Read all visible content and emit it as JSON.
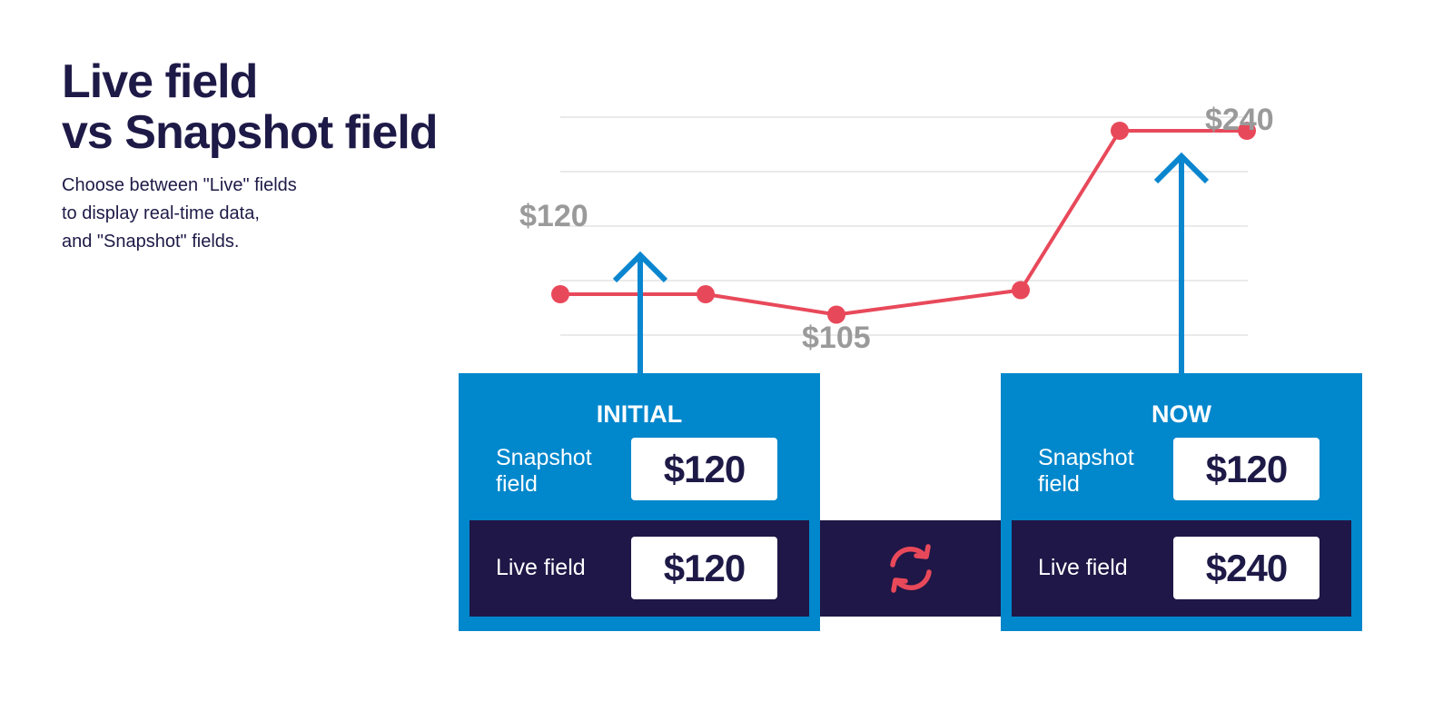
{
  "header": {
    "title_line1": "Live field",
    "title_line2": "vs Snapshot field",
    "subtitle_line1": "Choose between \"Live\" fields",
    "subtitle_line2": "to display real-time data,",
    "subtitle_line3": "and \"Snapshot\" fields."
  },
  "chart": {
    "points": [
      120,
      120,
      105,
      123,
      240,
      240
    ],
    "ymin": 90,
    "ymax": 250,
    "label_start": "$120",
    "label_low": "$105",
    "label_end": "$240"
  },
  "initial": {
    "title": "INITIAL",
    "snapshot_label": "Snapshot field",
    "snapshot_value": "$120",
    "live_label": "Live field",
    "live_value": "$120"
  },
  "now": {
    "title": "NOW",
    "snapshot_label": "Snapshot field",
    "snapshot_value": "$120",
    "live_label": "Live field",
    "live_value": "$240"
  },
  "icons": {
    "refresh": "refresh-icon",
    "arrow": "arrow-up-icon"
  },
  "colors": {
    "navy": "#1e1a47",
    "blue": "#0087cc",
    "red": "#e8495a",
    "gray": "#9a9a9a",
    "grid": "#e3e3e3"
  }
}
